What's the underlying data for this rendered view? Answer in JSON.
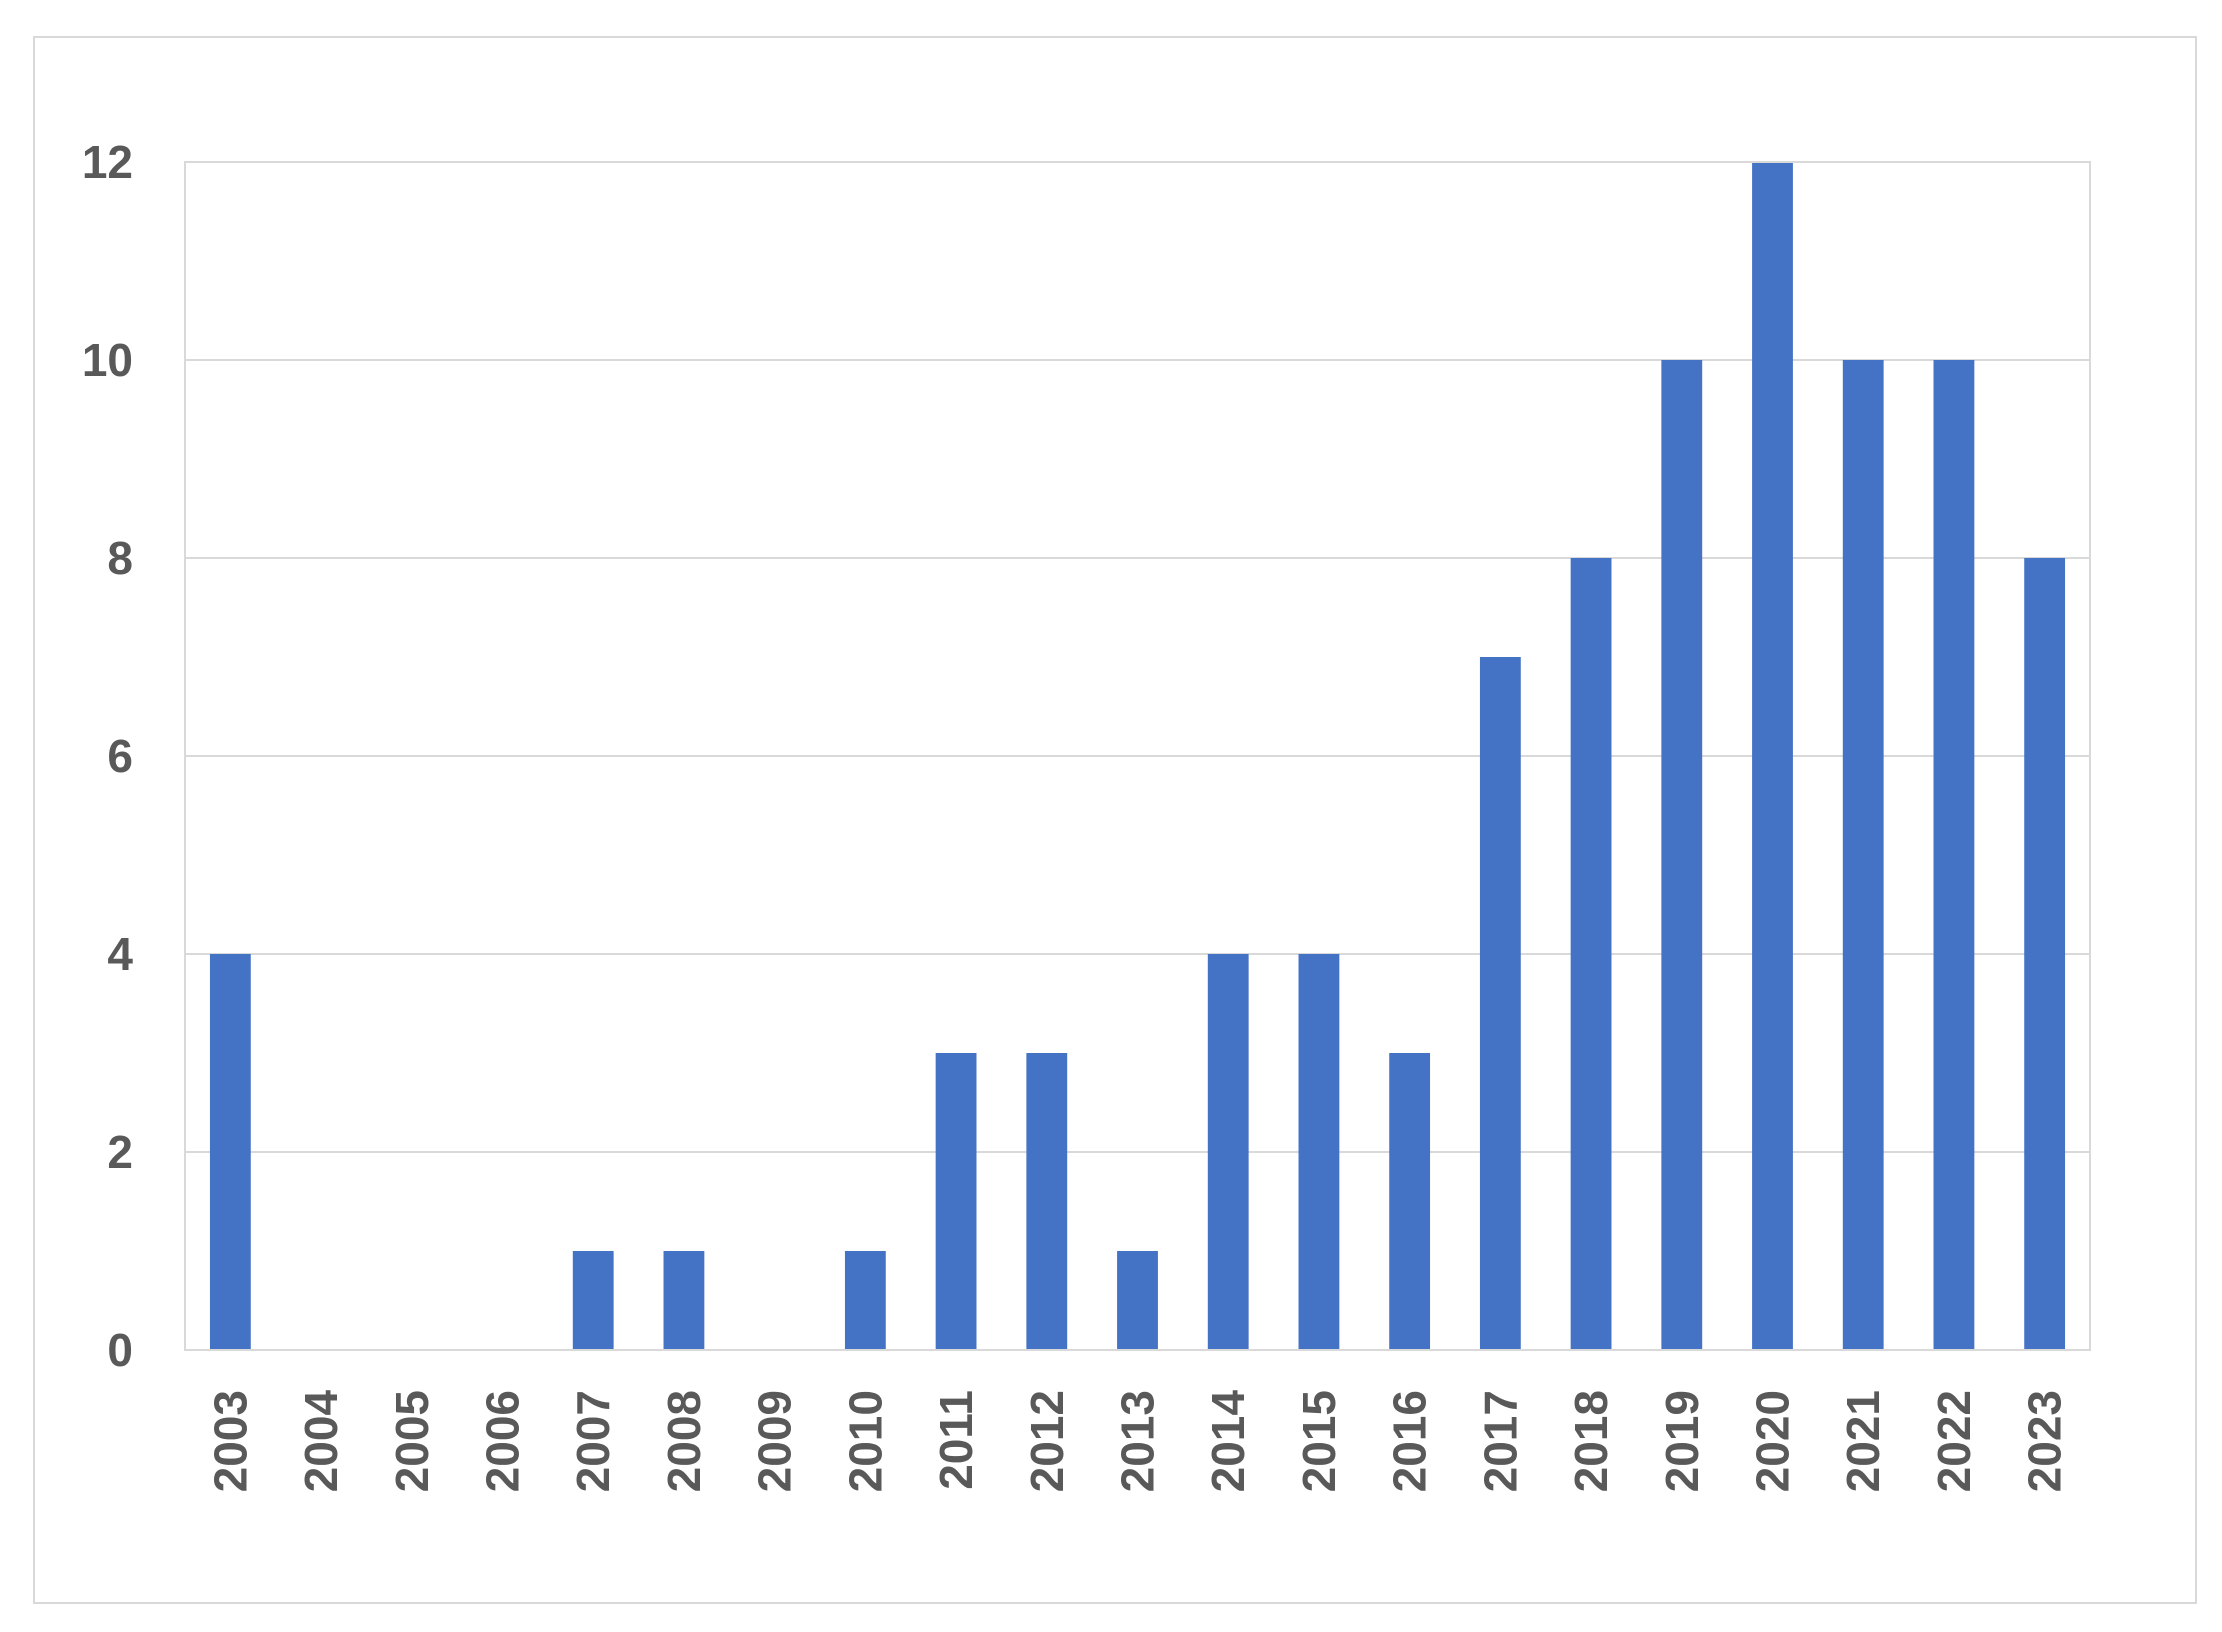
{
  "chart_data": {
    "type": "bar",
    "title": "",
    "xlabel": "",
    "ylabel": "",
    "categories": [
      "2003",
      "2004",
      "2005",
      "2006",
      "2007",
      "2008",
      "2009",
      "2010",
      "2011",
      "2012",
      "2013",
      "2014",
      "2015",
      "2016",
      "2017",
      "2018",
      "2019",
      "2020",
      "2021",
      "2022",
      "2023"
    ],
    "values": [
      4,
      0,
      0,
      0,
      1,
      1,
      0,
      1,
      3,
      3,
      1,
      4,
      4,
      3,
      7,
      8,
      10,
      12,
      10,
      10,
      8
    ],
    "ylim": [
      0,
      12
    ],
    "yticks": [
      "0",
      "2",
      "4",
      "6",
      "8",
      "10",
      "12"
    ],
    "grid": true,
    "legend": "none",
    "bar_color": "#4472c4",
    "grid_color": "#d9d9d9",
    "tick_color": "#595959"
  }
}
